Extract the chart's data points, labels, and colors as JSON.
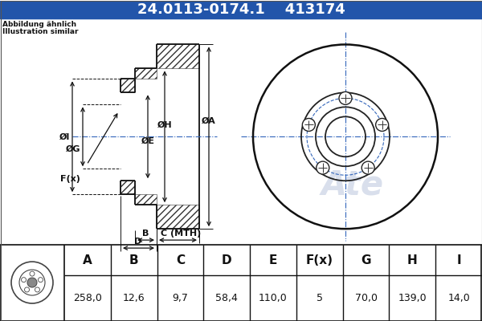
{
  "title_part": "24.0113-0174.1",
  "title_code": "413174",
  "header_bg": "#2255aa",
  "header_text_color": "#ffffff",
  "note_line1": "Abbildung ähnlich",
  "note_line2": "Illustration similar",
  "table_headers": [
    "A",
    "B",
    "C",
    "D",
    "E",
    "F(x)",
    "G",
    "H",
    "I"
  ],
  "table_values": [
    "258,0",
    "12,6",
    "9,7",
    "58,4",
    "110,0",
    "5",
    "70,0",
    "139,0",
    "14,0"
  ],
  "bg_color": "#ffffff",
  "drawing_bg": "#ffffff",
  "watermark_color": "#d0d8e8"
}
